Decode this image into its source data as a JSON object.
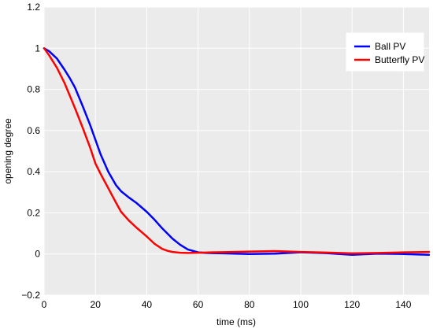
{
  "chart_data": {
    "type": "line",
    "xlabel": "time (ms)",
    "ylabel": "opening degree",
    "xlim": [
      0,
      150
    ],
    "ylim": [
      -0.2,
      1.2
    ],
    "xticks": [
      "0",
      "20",
      "40",
      "60",
      "80",
      "100",
      "120",
      "140"
    ],
    "yticks": [
      "−0.2",
      "0",
      "0.2",
      "0.4",
      "0.6",
      "0.8",
      "1",
      "1.2"
    ],
    "grid": true,
    "legend_position": "top-right",
    "series": [
      {
        "name": "Ball PV",
        "color": "#0000ff",
        "x": [
          0,
          2,
          5,
          8,
          10,
          12,
          15,
          18,
          20,
          22,
          25,
          28,
          30,
          33,
          36,
          40,
          43,
          46,
          50,
          53,
          56,
          60,
          63,
          66,
          70,
          80,
          90,
          100,
          110,
          120,
          130,
          140,
          150
        ],
        "y": [
          1.0,
          0.985,
          0.95,
          0.895,
          0.855,
          0.81,
          0.72,
          0.625,
          0.555,
          0.485,
          0.4,
          0.335,
          0.305,
          0.275,
          0.248,
          0.205,
          0.167,
          0.125,
          0.075,
          0.045,
          0.022,
          0.008,
          0.005,
          0.004,
          0.003,
          0.0,
          0.002,
          0.008,
          0.004,
          -0.004,
          0.002,
          0.0,
          -0.004
        ]
      },
      {
        "name": "Butterfly PV",
        "color": "#ff0000",
        "x": [
          0,
          2,
          5,
          8,
          10,
          12,
          15,
          18,
          20,
          22,
          25,
          28,
          30,
          33,
          36,
          40,
          43,
          46,
          48,
          50,
          53,
          56,
          60,
          65,
          70,
          80,
          90,
          100,
          110,
          120,
          130,
          140,
          150
        ],
        "y": [
          1.0,
          0.965,
          0.905,
          0.83,
          0.77,
          0.71,
          0.615,
          0.515,
          0.44,
          0.39,
          0.32,
          0.25,
          0.205,
          0.163,
          0.128,
          0.085,
          0.05,
          0.025,
          0.016,
          0.01,
          0.006,
          0.005,
          0.006,
          0.008,
          0.009,
          0.012,
          0.014,
          0.01,
          0.007,
          0.003,
          0.005,
          0.008,
          0.01
        ]
      }
    ]
  }
}
